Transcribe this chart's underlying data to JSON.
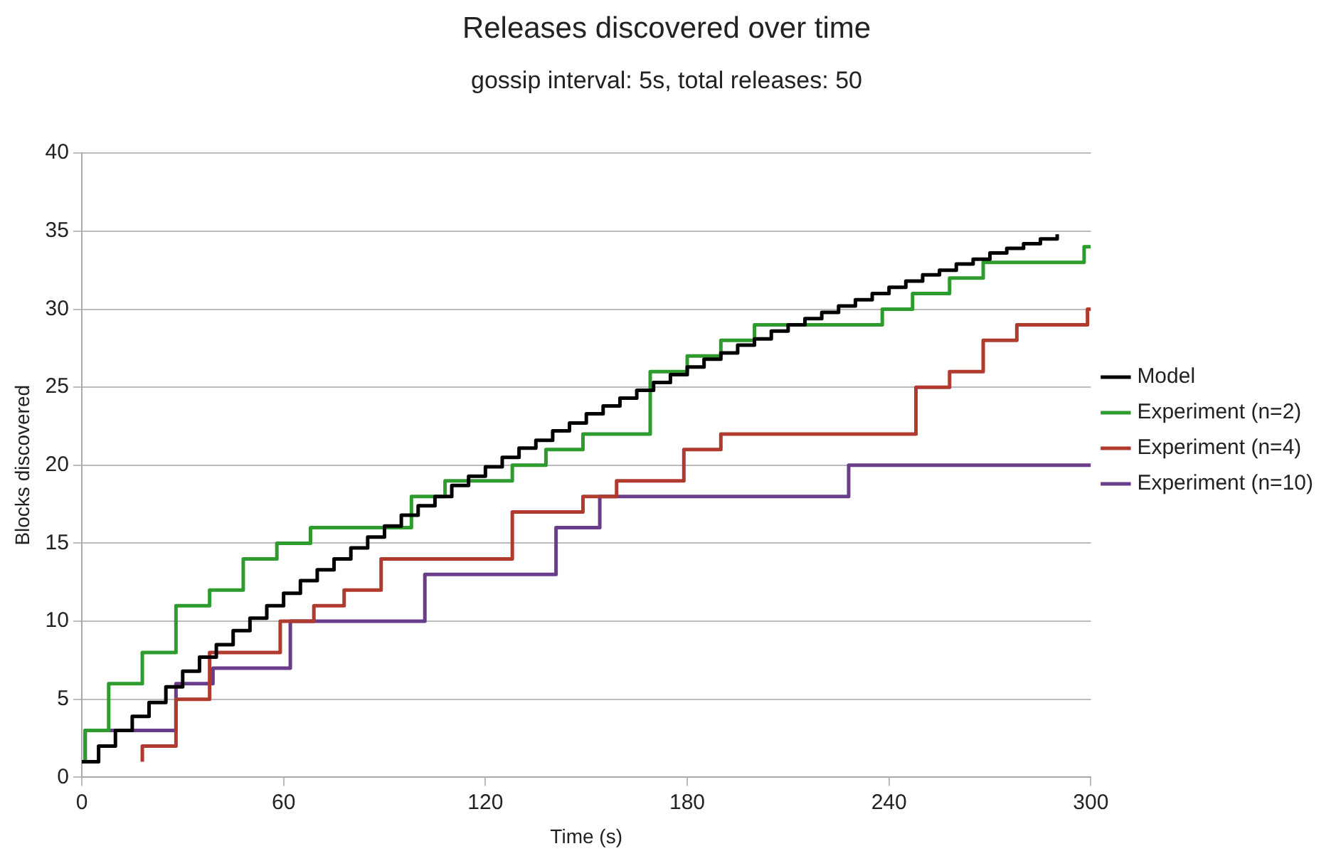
{
  "chart_data": {
    "type": "step",
    "title": "Releases discovered over time",
    "subtitle": "gossip interval: 5s, total releases: 50",
    "xlabel": "Time (s)",
    "ylabel": "Blocks discovered",
    "xlim": [
      0,
      300
    ],
    "xticks": [
      0,
      60,
      120,
      180,
      240,
      300
    ],
    "ylim": [
      0,
      40
    ],
    "yticks": [
      0,
      5,
      10,
      15,
      20,
      25,
      30,
      35,
      40
    ],
    "grid": "y",
    "legend": "right",
    "marker": "none",
    "line_style": "solid",
    "series": [
      {
        "name": "Model",
        "color": "#000000",
        "x": [
          0,
          5,
          10,
          15,
          20,
          25,
          30,
          35,
          40,
          45,
          50,
          55,
          60,
          65,
          70,
          75,
          80,
          85,
          90,
          95,
          100,
          105,
          110,
          115,
          120,
          125,
          130,
          135,
          140,
          145,
          150,
          155,
          160,
          165,
          170,
          175,
          180,
          185,
          190,
          195,
          200,
          205,
          210,
          215,
          220,
          225,
          230,
          235,
          240,
          245,
          250,
          255,
          260,
          265,
          270,
          275,
          280,
          285,
          290
        ],
        "values": [
          1.0,
          2.0,
          3.0,
          3.9,
          4.8,
          5.8,
          6.8,
          7.7,
          8.5,
          9.4,
          10.2,
          11.0,
          11.8,
          12.6,
          13.3,
          14.0,
          14.7,
          15.4,
          16.1,
          16.8,
          17.4,
          18.0,
          18.7,
          19.3,
          19.9,
          20.5,
          21.1,
          21.6,
          22.2,
          22.7,
          23.3,
          23.8,
          24.3,
          24.8,
          25.3,
          25.8,
          26.3,
          26.8,
          27.2,
          27.7,
          28.1,
          28.6,
          29.0,
          29.4,
          29.8,
          30.2,
          30.6,
          31.0,
          31.4,
          31.8,
          32.2,
          32.5,
          32.9,
          33.2,
          33.6,
          33.9,
          34.2,
          34.5,
          34.8
        ]
      },
      {
        "name": "Experiment (n=2)",
        "color": "#2e9b2e",
        "x": [
          1,
          1,
          8,
          18,
          28,
          38,
          48,
          58,
          68,
          98,
          108,
          128,
          138,
          149,
          169,
          180,
          190,
          200,
          238,
          247,
          258,
          268,
          298,
          300
        ],
        "values": [
          1,
          3,
          6,
          8,
          11,
          12,
          14,
          15,
          16,
          18,
          19,
          20,
          21,
          22,
          26,
          27,
          28,
          29,
          30,
          31,
          32,
          33,
          34,
          34
        ]
      },
      {
        "name": "Experiment (n=4)",
        "color": "#b03a2e",
        "x": [
          18,
          18,
          28,
          38,
          59,
          69,
          78,
          89,
          128,
          149,
          159,
          179,
          190,
          248,
          258,
          268,
          278,
          299,
          300
        ],
        "values": [
          1,
          2,
          5,
          8,
          10,
          11,
          12,
          14,
          17,
          18,
          19,
          21,
          22,
          25,
          26,
          28,
          29,
          30,
          30
        ]
      },
      {
        "name": "Experiment (n=10)",
        "color": "#6a3d8a",
        "x": [
          1,
          1,
          28,
          39,
          62,
          102,
          141,
          154,
          228,
          300
        ],
        "values": [
          1,
          3,
          6,
          7,
          10,
          13,
          16,
          18,
          20,
          20
        ]
      }
    ]
  }
}
